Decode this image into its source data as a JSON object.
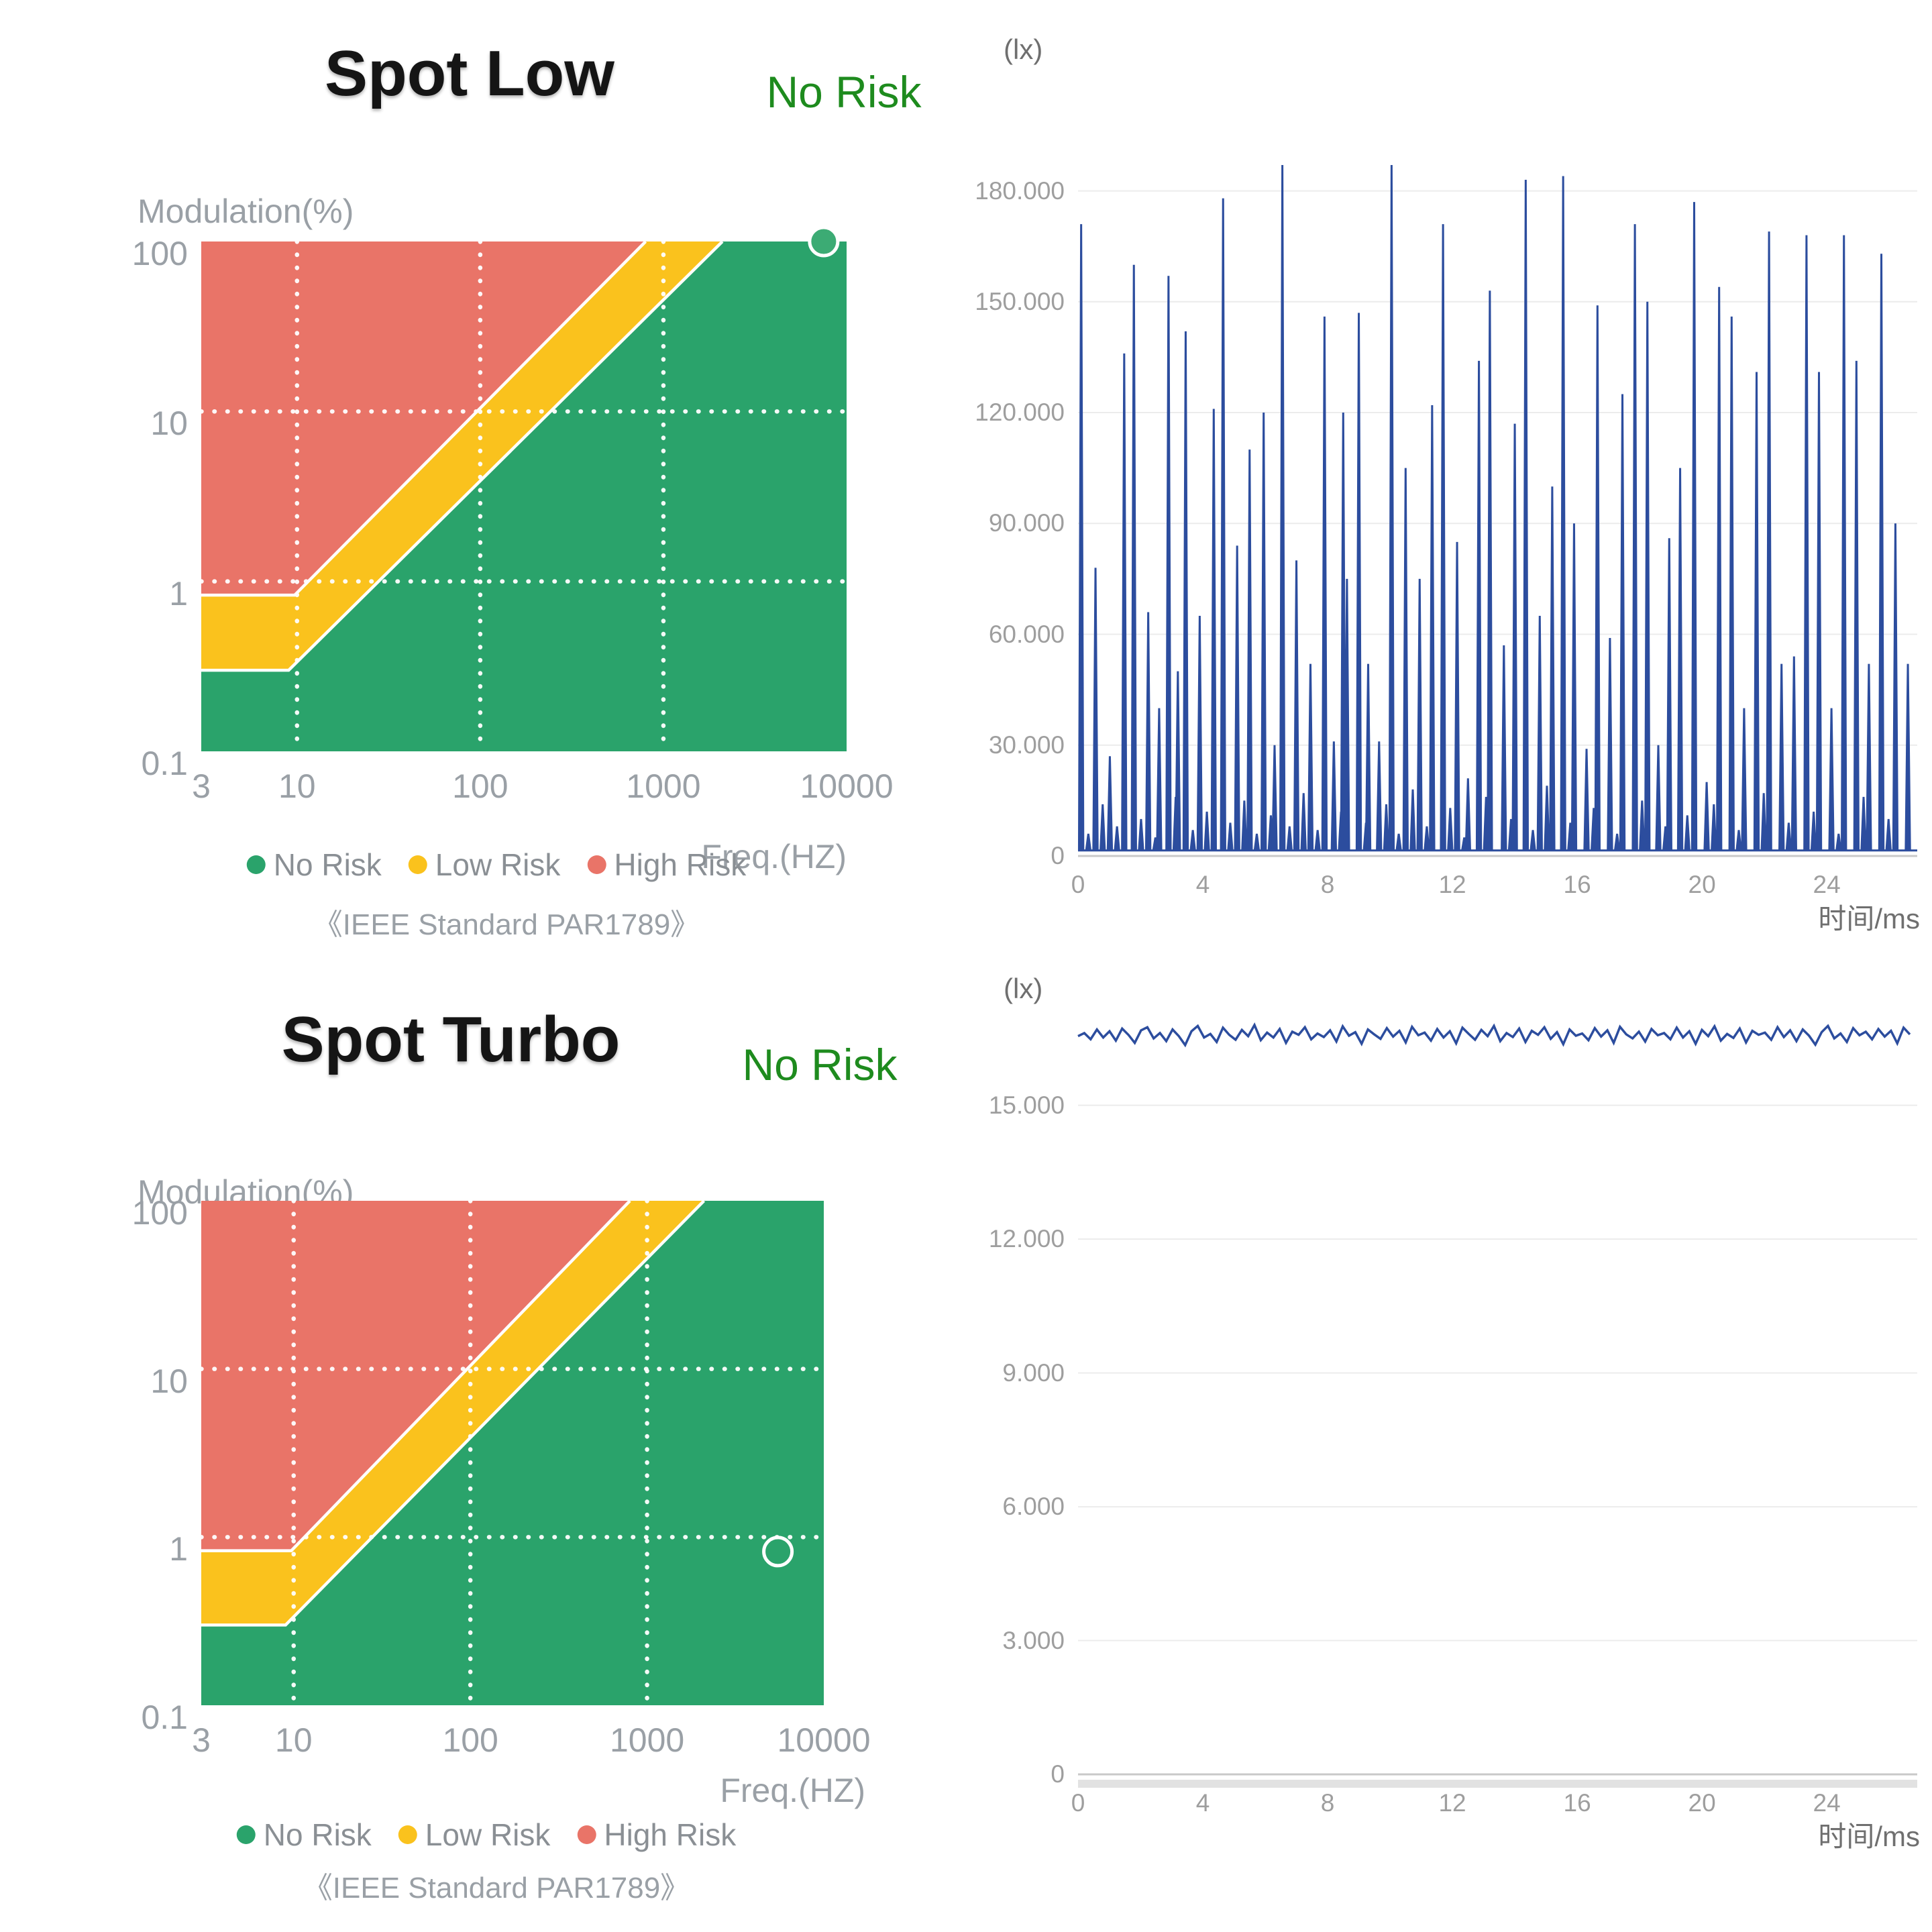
{
  "headers": [
    {
      "title": "Spot Low",
      "status": "No Risk"
    },
    {
      "title": "Spot Turbo",
      "status": "No Risk"
    }
  ],
  "colors": {
    "no_risk": "#2aa36b",
    "low_risk": "#fac21d",
    "high_risk": "#e97468",
    "status_text": "#1e8b1e",
    "line_blue": "#2c4d9e",
    "marker_fill": "#3cab74",
    "grid_line": "#ececec",
    "zero_line": "#c9c9c9",
    "axis_text": "#9aa0a6",
    "tick_text": "#9e9e9e"
  },
  "chart_data": [
    {
      "id": "risk-spot-low",
      "type": "area",
      "xscale": "log",
      "yscale": "log",
      "xlim": [
        3,
        10000
      ],
      "ylim": [
        0.1,
        100
      ],
      "ylabel": "Modulation(%)",
      "xlabel": "Freq.(HZ)",
      "x_ticks": [
        3,
        10,
        100,
        1000,
        10000
      ],
      "x_tick_labels": [
        "3",
        "10",
        "100",
        "1000",
        "10000"
      ],
      "y_ticks": [
        100,
        10,
        1,
        0.1
      ],
      "y_tick_labels": [
        "100",
        "10",
        "1",
        "0.1"
      ],
      "grid_x": [
        10,
        100,
        1000
      ],
      "grid_y": [
        10,
        1
      ],
      "low_risk_boundary": [
        [
          3,
          0.3
        ],
        [
          9,
          0.3
        ],
        [
          2100,
          100
        ]
      ],
      "high_risk_boundary": [
        [
          3,
          0.83
        ],
        [
          9.7,
          0.83
        ],
        [
          800,
          100
        ]
      ],
      "legend": [
        {
          "label": "No Risk",
          "color_key": "no_risk"
        },
        {
          "label": "Low Risk",
          "color_key": "low_risk"
        },
        {
          "label": "High Risk",
          "color_key": "high_risk"
        }
      ],
      "caption": "《IEEE Standard PAR1789》",
      "point": {
        "freq_hz": 7500,
        "modulation_pct": 100,
        "style": "filled"
      }
    },
    {
      "id": "waveform-spot-low",
      "type": "line",
      "unit": "(lx)",
      "xlabel": "时间/ms",
      "xlim": [
        0,
        26.9
      ],
      "ylim": [
        0,
        189000
      ],
      "x_ticks": [
        0,
        4,
        8,
        12,
        16,
        20,
        24
      ],
      "y_ticks": [
        0,
        30000,
        60000,
        90000,
        120000,
        150000,
        180000
      ],
      "y_tick_labels": [
        "0",
        "30.000",
        "60.000",
        "90.000",
        "120.000",
        "150.000",
        "180.000"
      ],
      "baseline_lx": 1500,
      "spikes": [
        [
          0.1,
          171000
        ],
        [
          0.33,
          6000
        ],
        [
          0.56,
          78000
        ],
        [
          0.79,
          14000
        ],
        [
          1.02,
          27000
        ],
        [
          1.25,
          8000
        ],
        [
          1.48,
          136000
        ],
        [
          1.79,
          160000
        ],
        [
          2.02,
          10000
        ],
        [
          2.25,
          66000
        ],
        [
          2.48,
          5000
        ],
        [
          2.6,
          40000
        ],
        [
          2.9,
          157000
        ],
        [
          3.13,
          16000
        ],
        [
          3.2,
          50000
        ],
        [
          3.45,
          142000
        ],
        [
          3.68,
          7000
        ],
        [
          3.9,
          65000
        ],
        [
          4.13,
          12000
        ],
        [
          4.35,
          121000
        ],
        [
          4.65,
          178000
        ],
        [
          4.88,
          9000
        ],
        [
          5.1,
          84000
        ],
        [
          5.33,
          15000
        ],
        [
          5.5,
          110000
        ],
        [
          5.73,
          6000
        ],
        [
          5.95,
          120000
        ],
        [
          6.18,
          11000
        ],
        [
          6.3,
          30000
        ],
        [
          6.55,
          187000
        ],
        [
          6.78,
          8000
        ],
        [
          7.0,
          80000
        ],
        [
          7.23,
          17000
        ],
        [
          7.45,
          52000
        ],
        [
          7.68,
          7000
        ],
        [
          7.9,
          146000
        ],
        [
          8.2,
          31000
        ],
        [
          8.43,
          12000
        ],
        [
          8.5,
          120000
        ],
        [
          8.62,
          75000
        ],
        [
          9.0,
          147000
        ],
        [
          9.23,
          9000
        ],
        [
          9.3,
          52000
        ],
        [
          9.65,
          31000
        ],
        [
          9.88,
          14000
        ],
        [
          10.05,
          187000
        ],
        [
          10.28,
          6000
        ],
        [
          10.5,
          105000
        ],
        [
          10.73,
          18000
        ],
        [
          10.95,
          75000
        ],
        [
          11.18,
          8000
        ],
        [
          11.35,
          122000
        ],
        [
          11.7,
          171000
        ],
        [
          11.93,
          13000
        ],
        [
          12.15,
          85000
        ],
        [
          12.38,
          5000
        ],
        [
          12.5,
          21000
        ],
        [
          12.85,
          134000
        ],
        [
          13.08,
          16000
        ],
        [
          13.2,
          153000
        ],
        [
          13.65,
          57000
        ],
        [
          13.88,
          10000
        ],
        [
          14.0,
          117000
        ],
        [
          14.35,
          183000
        ],
        [
          14.58,
          7000
        ],
        [
          14.8,
          65000
        ],
        [
          15.03,
          19000
        ],
        [
          15.2,
          100000
        ],
        [
          15.55,
          184000
        ],
        [
          15.78,
          9000
        ],
        [
          15.9,
          90000
        ],
        [
          16.3,
          29000
        ],
        [
          16.53,
          13000
        ],
        [
          16.65,
          149000
        ],
        [
          17.05,
          59000
        ],
        [
          17.28,
          6000
        ],
        [
          17.45,
          125000
        ],
        [
          17.85,
          171000
        ],
        [
          18.08,
          15000
        ],
        [
          18.25,
          150000
        ],
        [
          18.6,
          30000
        ],
        [
          18.83,
          8000
        ],
        [
          18.95,
          86000
        ],
        [
          19.3,
          105000
        ],
        [
          19.53,
          11000
        ],
        [
          19.75,
          177000
        ],
        [
          20.15,
          20000
        ],
        [
          20.38,
          14000
        ],
        [
          20.55,
          154000
        ],
        [
          20.95,
          146000
        ],
        [
          21.18,
          7000
        ],
        [
          21.35,
          40000
        ],
        [
          21.75,
          131000
        ],
        [
          21.98,
          17000
        ],
        [
          22.15,
          169000
        ],
        [
          22.55,
          52000
        ],
        [
          22.78,
          9000
        ],
        [
          22.95,
          54000
        ],
        [
          23.35,
          168000
        ],
        [
          23.58,
          12000
        ],
        [
          23.75,
          131000
        ],
        [
          24.15,
          40000
        ],
        [
          24.38,
          6000
        ],
        [
          24.55,
          168000
        ],
        [
          24.95,
          134000
        ],
        [
          25.18,
          16000
        ],
        [
          25.35,
          52000
        ],
        [
          25.75,
          163000
        ],
        [
          25.98,
          10000
        ],
        [
          26.2,
          90000
        ],
        [
          26.6,
          52000
        ]
      ]
    },
    {
      "id": "risk-spot-turbo",
      "type": "area",
      "xscale": "log",
      "yscale": "log",
      "xlim": [
        3,
        10000
      ],
      "ylim": [
        0.1,
        100
      ],
      "ylabel": "Modulation(%)",
      "xlabel": "Freq.(HZ)",
      "x_ticks": [
        3,
        10,
        100,
        1000,
        10000
      ],
      "x_tick_labels": [
        "3",
        "10",
        "100",
        "1000",
        "10000"
      ],
      "y_ticks": [
        100,
        10,
        1,
        0.1
      ],
      "y_tick_labels": [
        "100",
        "10",
        "1",
        "0.1"
      ],
      "grid_x": [
        10,
        100,
        1000
      ],
      "grid_y": [
        10,
        1
      ],
      "low_risk_boundary": [
        [
          3,
          0.3
        ],
        [
          9,
          0.3
        ],
        [
          2100,
          100
        ]
      ],
      "high_risk_boundary": [
        [
          3,
          0.83
        ],
        [
          9.7,
          0.83
        ],
        [
          800,
          100
        ]
      ],
      "legend": [
        {
          "label": "No Risk",
          "color_key": "no_risk"
        },
        {
          "label": "Low Risk",
          "color_key": "low_risk"
        },
        {
          "label": "High Risk",
          "color_key": "high_risk"
        }
      ],
      "caption": "《IEEE Standard PAR1789》",
      "point": {
        "freq_hz": 5500,
        "modulation_pct": 0.82,
        "style": "hollow"
      }
    },
    {
      "id": "waveform-spot-turbo",
      "type": "line",
      "unit": "(lx)",
      "xlabel": "时间/ms",
      "xlim": [
        0,
        26.9
      ],
      "ylim": [
        0,
        16920
      ],
      "x_ticks": [
        0,
        4,
        8,
        12,
        16,
        20,
        24
      ],
      "y_ticks": [
        0,
        3000,
        6000,
        9000,
        12000,
        15000
      ],
      "y_tick_labels": [
        "0",
        "3.000",
        "6.000",
        "9.000",
        "12.000",
        "15.000"
      ],
      "samples_t0": 0,
      "samples_dt": 0.202,
      "samples_lx": [
        16550,
        16620,
        16480,
        16700,
        16520,
        16660,
        16450,
        16720,
        16580,
        16400,
        16680,
        16750,
        16500,
        16620,
        16440,
        16700,
        16550,
        16350,
        16660,
        16780,
        16520,
        16600,
        16420,
        16740,
        16580,
        16470,
        16690,
        16550,
        16800,
        16460,
        16630,
        16520,
        16710,
        16400,
        16650,
        16580,
        16750,
        16480,
        16610,
        16530,
        16680,
        16430,
        16770,
        16560,
        16640,
        16380,
        16700,
        16590,
        16490,
        16730,
        16540,
        16670,
        16410,
        16760,
        16570,
        16630,
        16450,
        16710,
        16520,
        16660,
        16390,
        16740,
        16600,
        16470,
        16690,
        16550,
        16780,
        16440,
        16620,
        16530,
        16720,
        16420,
        16670,
        16580,
        16750,
        16490,
        16640,
        16370,
        16700,
        16560,
        16610,
        16460,
        16730,
        16540,
        16680,
        16400,
        16760,
        16590,
        16500,
        16650,
        16430,
        16710,
        16570,
        16620,
        16480,
        16740,
        16520,
        16660,
        16380,
        16690,
        16550,
        16770,
        16450,
        16600,
        16510,
        16720,
        16410,
        16670,
        16580,
        16630,
        16470,
        16750,
        16530,
        16680,
        16440,
        16700,
        16560,
        16360,
        16640,
        16780,
        16500,
        16610,
        16420,
        16730,
        16570,
        16650,
        16480,
        16710,
        16540,
        16670,
        16390,
        16740,
        16590
      ]
    }
  ]
}
